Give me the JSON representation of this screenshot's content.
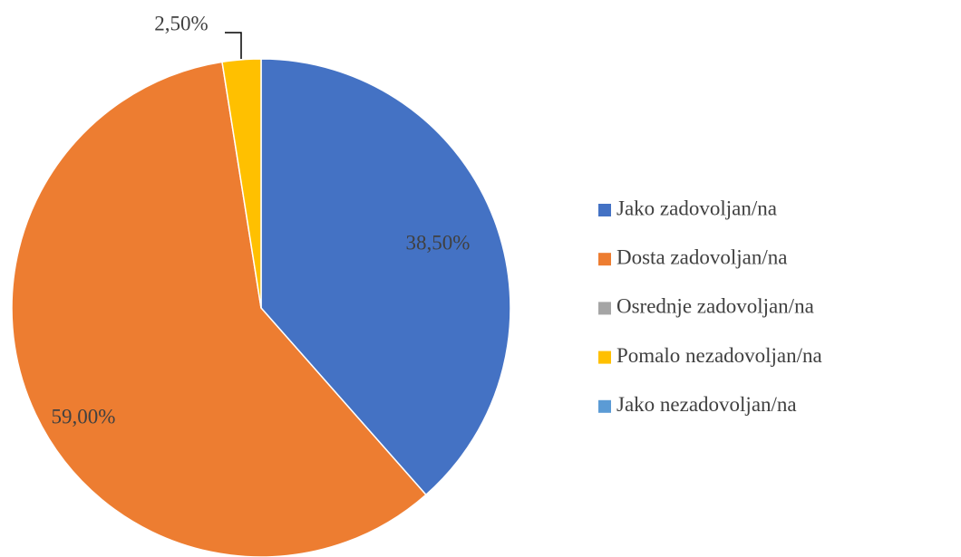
{
  "chart_data": {
    "type": "pie",
    "categories": [
      "Jako zadovoljan/na",
      "Dosta zadovoljan/na",
      "Osrednje zadovoljan/na",
      "Pomalo nezadovoljan/na",
      "Jako nezadovoljan/na"
    ],
    "values": [
      38.5,
      59,
      0,
      2.5,
      0
    ],
    "value_labels": [
      "38,50%",
      "59,00%",
      null,
      "2,50%",
      null
    ],
    "colors": [
      "#4472c4",
      "#ed7d31",
      "#a5a5a5",
      "#ffc000",
      "#5b9bd5"
    ],
    "legend": "right"
  }
}
